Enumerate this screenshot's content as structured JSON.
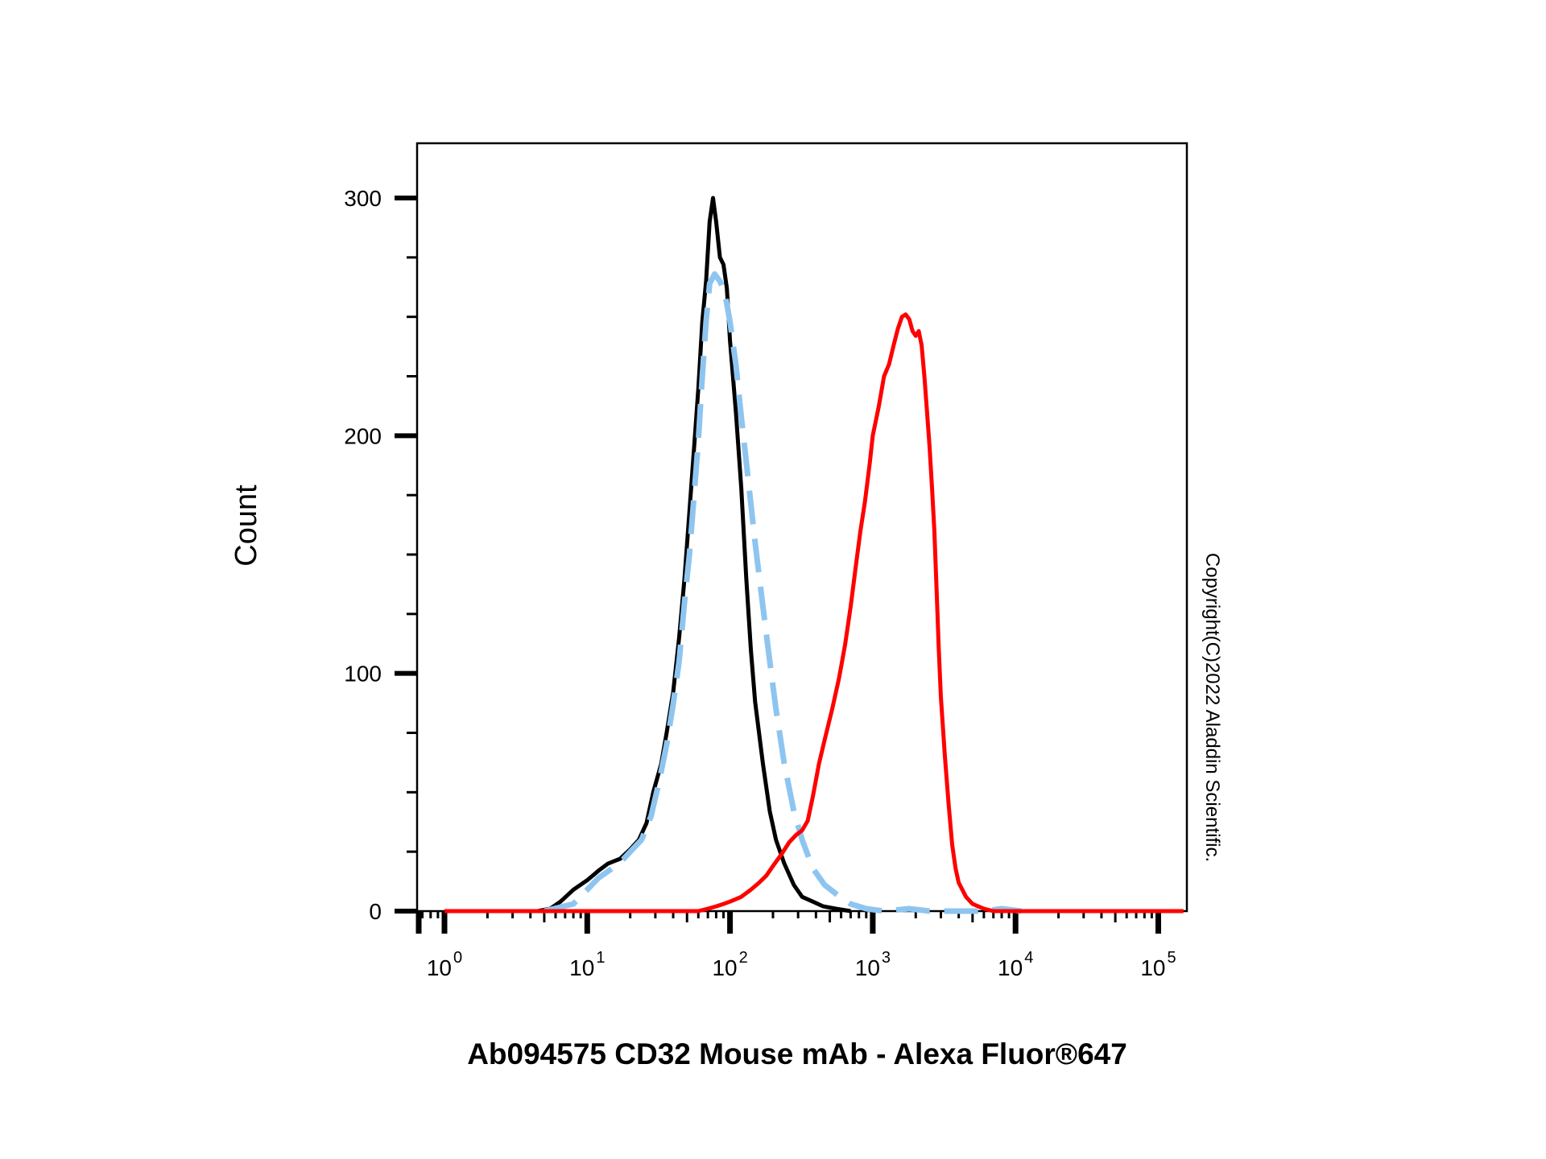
{
  "chart_data": {
    "type": "line",
    "title": "",
    "xlabel": "Ab094575 CD32 Mouse mAb - Alexa Fluor®647",
    "ylabel": "Count",
    "x_scale": "log",
    "xlim": [
      0.63,
      150000
    ],
    "ylim": [
      0,
      320
    ],
    "x_ticks": [
      {
        "base": "10",
        "exp": "0",
        "value": 1
      },
      {
        "base": "10",
        "exp": "1",
        "value": 10
      },
      {
        "base": "10",
        "exp": "2",
        "value": 100
      },
      {
        "base": "10",
        "exp": "3",
        "value": 1000
      },
      {
        "base": "10",
        "exp": "4",
        "value": 10000
      },
      {
        "base": "10",
        "exp": "5",
        "value": 100000
      }
    ],
    "y_ticks": [
      {
        "label": "0",
        "value": 0
      },
      {
        "label": "100",
        "value": 100
      },
      {
        "label": "200",
        "value": 200
      },
      {
        "label": "300",
        "value": 300
      }
    ],
    "grid": false,
    "legend": "none",
    "series": [
      {
        "color": "#000000",
        "dash": "solid",
        "points": [
          [
            4.5,
            0
          ],
          [
            5.5,
            1
          ],
          [
            6.5,
            4
          ],
          [
            8,
            9
          ],
          [
            10,
            13
          ],
          [
            12,
            17
          ],
          [
            14,
            20
          ],
          [
            17,
            22
          ],
          [
            20,
            26
          ],
          [
            23,
            30
          ],
          [
            26,
            37
          ],
          [
            29,
            50
          ],
          [
            33,
            62
          ],
          [
            36,
            75
          ],
          [
            40,
            92
          ],
          [
            44,
            115
          ],
          [
            48,
            140
          ],
          [
            52,
            168
          ],
          [
            56,
            195
          ],
          [
            60,
            220
          ],
          [
            64,
            248
          ],
          [
            68,
            265
          ],
          [
            72,
            290
          ],
          [
            76,
            300
          ],
          [
            80,
            290
          ],
          [
            85,
            275
          ],
          [
            90,
            272
          ],
          [
            95,
            262
          ],
          [
            100,
            240
          ],
          [
            110,
            210
          ],
          [
            120,
            178
          ],
          [
            130,
            140
          ],
          [
            140,
            110
          ],
          [
            150,
            88
          ],
          [
            170,
            62
          ],
          [
            190,
            42
          ],
          [
            210,
            30
          ],
          [
            240,
            20
          ],
          [
            280,
            11
          ],
          [
            320,
            6
          ],
          [
            380,
            4
          ],
          [
            450,
            2
          ],
          [
            550,
            1
          ],
          [
            700,
            0
          ]
        ]
      },
      {
        "color": "#8EC5F0",
        "dash": "dashed",
        "points": [
          [
            5,
            0
          ],
          [
            8,
            3
          ],
          [
            10,
            9
          ],
          [
            12,
            14
          ],
          [
            15,
            18
          ],
          [
            18,
            22
          ],
          [
            20,
            25
          ],
          [
            24,
            30
          ],
          [
            28,
            40
          ],
          [
            32,
            55
          ],
          [
            36,
            70
          ],
          [
            40,
            87
          ],
          [
            44,
            105
          ],
          [
            48,
            130
          ],
          [
            52,
            150
          ],
          [
            56,
            175
          ],
          [
            60,
            198
          ],
          [
            64,
            225
          ],
          [
            68,
            248
          ],
          [
            72,
            264
          ],
          [
            78,
            268
          ],
          [
            85,
            265
          ],
          [
            92,
            260
          ],
          [
            100,
            248
          ],
          [
            110,
            230
          ],
          [
            120,
            208
          ],
          [
            135,
            180
          ],
          [
            150,
            155
          ],
          [
            170,
            128
          ],
          [
            190,
            105
          ],
          [
            210,
            85
          ],
          [
            240,
            62
          ],
          [
            280,
            42
          ],
          [
            320,
            30
          ],
          [
            380,
            18
          ],
          [
            460,
            11
          ],
          [
            560,
            7
          ],
          [
            700,
            3
          ],
          [
            900,
            1
          ],
          [
            1200,
            0
          ],
          [
            1800,
            1
          ],
          [
            2500,
            0
          ],
          [
            3500,
            0
          ],
          [
            6000,
            0
          ],
          [
            8000,
            1
          ],
          [
            11000,
            0
          ]
        ]
      },
      {
        "color": "#FF0000",
        "dash": "solid",
        "points": [
          [
            1,
            0
          ],
          [
            60,
            0
          ],
          [
            70,
            1
          ],
          [
            80,
            2
          ],
          [
            90,
            3
          ],
          [
            100,
            4
          ],
          [
            120,
            6
          ],
          [
            140,
            9
          ],
          [
            160,
            12
          ],
          [
            180,
            15
          ],
          [
            200,
            19
          ],
          [
            230,
            24
          ],
          [
            260,
            29
          ],
          [
            290,
            32
          ],
          [
            320,
            34
          ],
          [
            350,
            38
          ],
          [
            380,
            48
          ],
          [
            420,
            62
          ],
          [
            460,
            72
          ],
          [
            520,
            85
          ],
          [
            580,
            98
          ],
          [
            640,
            112
          ],
          [
            700,
            128
          ],
          [
            760,
            145
          ],
          [
            820,
            160
          ],
          [
            880,
            172
          ],
          [
            950,
            188
          ],
          [
            1000,
            200
          ],
          [
            1100,
            212
          ],
          [
            1200,
            225
          ],
          [
            1300,
            230
          ],
          [
            1400,
            238
          ],
          [
            1500,
            245
          ],
          [
            1600,
            250
          ],
          [
            1700,
            251
          ],
          [
            1800,
            249
          ],
          [
            1900,
            244
          ],
          [
            2000,
            242
          ],
          [
            2100,
            244
          ],
          [
            2200,
            238
          ],
          [
            2300,
            225
          ],
          [
            2400,
            210
          ],
          [
            2500,
            195
          ],
          [
            2600,
            178
          ],
          [
            2700,
            160
          ],
          [
            2800,
            135
          ],
          [
            2900,
            110
          ],
          [
            3000,
            90
          ],
          [
            3200,
            65
          ],
          [
            3400,
            45
          ],
          [
            3600,
            28
          ],
          [
            3800,
            18
          ],
          [
            4000,
            12
          ],
          [
            4500,
            6
          ],
          [
            5000,
            3
          ],
          [
            6000,
            1
          ],
          [
            7000,
            0
          ],
          [
            10000,
            0
          ],
          [
            100000,
            0
          ],
          [
            150000,
            0
          ]
        ]
      }
    ]
  },
  "copyright": "Copyright(C)2022 Aladdin Scientific."
}
